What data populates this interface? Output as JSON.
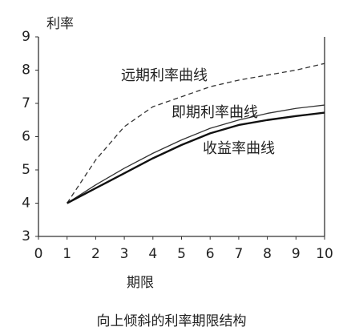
{
  "chart_data": {
    "type": "line",
    "title": "向上倾斜的利率期限结构",
    "ylabel": "利率",
    "xlabel": "期限",
    "x": [
      1,
      2,
      3,
      4,
      5,
      6,
      7,
      8,
      9,
      10
    ],
    "series": [
      {
        "name": "远期利率曲线",
        "color": "#333333",
        "dash": true,
        "width": 1.3,
        "values": [
          4.0,
          5.3,
          6.3,
          6.9,
          7.2,
          7.5,
          7.7,
          7.85,
          8.0,
          8.2
        ]
      },
      {
        "name": "即期利率曲线",
        "color": "#333333",
        "dash": false,
        "width": 1.3,
        "values": [
          4.0,
          4.55,
          5.05,
          5.5,
          5.9,
          6.25,
          6.5,
          6.7,
          6.85,
          6.95
        ]
      },
      {
        "name": "收益率曲线",
        "color": "#111111",
        "dash": false,
        "width": 2.4,
        "values": [
          4.0,
          4.45,
          4.9,
          5.35,
          5.75,
          6.1,
          6.35,
          6.5,
          6.62,
          6.72
        ]
      }
    ],
    "xlim": [
      0,
      10
    ],
    "xticks": [
      0,
      1,
      2,
      3,
      4,
      5,
      6,
      7,
      8,
      9,
      10
    ],
    "ylim": [
      3,
      9
    ],
    "yticks": [
      3,
      4,
      5,
      6,
      7,
      8,
      9
    ]
  }
}
